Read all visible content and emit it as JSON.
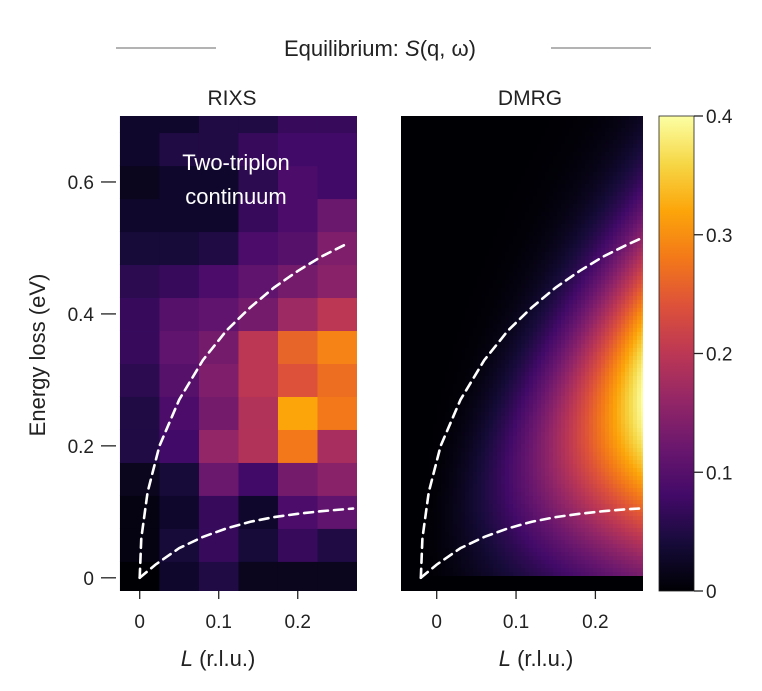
{
  "figure": {
    "title": "Equilibrium: S(q, ω)",
    "title_parts": {
      "text": "Equilibrium: ",
      "symbol": "S",
      "args": "(q, ω)"
    }
  },
  "chart_data": [
    {
      "type": "heatmap",
      "title": "RIXS",
      "xlabel": "L (r.l.u.)",
      "xlabel_parts": {
        "italic": "L",
        "unit": " (r.l.u.)"
      },
      "ylabel": "Energy loss (eV)",
      "x_ticks": [
        0,
        0.1,
        0.2
      ],
      "x_tick_labels": [
        "0",
        "0.1",
        "0.2"
      ],
      "y_ticks": [
        0,
        0.2,
        0.4,
        0.6
      ],
      "y_tick_labels": [
        "0",
        "0.2",
        "0.4",
        "0.6"
      ],
      "xlim": [
        -0.03,
        0.275
      ],
      "ylim": [
        -0.02,
        0.7
      ],
      "annotation": [
        "Two-triplon",
        "continuum"
      ],
      "x_bins": [
        -0.025,
        0.025,
        0.075,
        0.125,
        0.175,
        0.225,
        0.275
      ],
      "y_bins": [
        -0.025,
        0.025,
        0.075,
        0.125,
        0.175,
        0.225,
        0.275,
        0.325,
        0.375,
        0.425,
        0.475,
        0.525,
        0.575,
        0.625,
        0.675,
        0.7
      ],
      "z": [
        [
          0.0,
          0.03,
          0.05,
          0.02,
          0.02,
          0.02
        ],
        [
          0.01,
          0.04,
          0.07,
          0.04,
          0.07,
          0.05
        ],
        [
          0.01,
          0.03,
          0.07,
          0.03,
          0.09,
          0.11
        ],
        [
          0.02,
          0.04,
          0.12,
          0.08,
          0.13,
          0.15
        ],
        [
          0.05,
          0.08,
          0.16,
          0.19,
          0.28,
          0.18
        ],
        [
          0.05,
          0.09,
          0.13,
          0.19,
          0.32,
          0.28
        ],
        [
          0.06,
          0.1,
          0.14,
          0.2,
          0.24,
          0.27
        ],
        [
          0.07,
          0.11,
          0.13,
          0.2,
          0.26,
          0.29
        ],
        [
          0.07,
          0.1,
          0.11,
          0.13,
          0.17,
          0.2
        ],
        [
          0.06,
          0.07,
          0.09,
          0.11,
          0.13,
          0.15
        ],
        [
          0.04,
          0.04,
          0.05,
          0.09,
          0.1,
          0.14
        ],
        [
          0.03,
          0.03,
          0.03,
          0.07,
          0.09,
          0.12
        ],
        [
          0.02,
          0.03,
          0.03,
          0.06,
          0.09,
          0.08
        ],
        [
          0.03,
          0.05,
          0.05,
          0.07,
          0.08,
          0.08
        ],
        [
          0.03,
          0.03,
          0.05,
          0.05,
          0.07,
          0.07
        ]
      ],
      "zlim": [
        0,
        0.4
      ],
      "lines": [
        {
          "style": "dashed",
          "color": "#ffffff",
          "x": [
            0,
            0.002,
            0.01,
            0.025,
            0.05,
            0.08,
            0.11,
            0.14,
            0.17,
            0.2,
            0.23,
            0.26
          ],
          "y": [
            0,
            0.06,
            0.13,
            0.2,
            0.27,
            0.33,
            0.375,
            0.41,
            0.44,
            0.465,
            0.487,
            0.505
          ]
        },
        {
          "style": "dashed",
          "color": "#ffffff",
          "x": [
            0,
            0.02,
            0.05,
            0.08,
            0.11,
            0.14,
            0.17,
            0.2,
            0.23,
            0.26,
            0.27
          ],
          "y": [
            0,
            0.02,
            0.045,
            0.062,
            0.075,
            0.085,
            0.092,
            0.097,
            0.101,
            0.104,
            0.105
          ]
        }
      ]
    },
    {
      "type": "heatmap",
      "title": "DMRG",
      "xlabel": "L (r.l.u.)",
      "xlabel_parts": {
        "italic": "L",
        "unit": " (r.l.u.)"
      },
      "x_ticks": [
        0,
        0.1,
        0.2
      ],
      "x_tick_labels": [
        "0",
        "0.1",
        "0.2"
      ],
      "xlim": [
        -0.045,
        0.26
      ],
      "ylim": [
        -0.02,
        0.7
      ],
      "zlim": [
        0,
        0.4
      ],
      "lines": [
        {
          "style": "dashed",
          "color": "#ffffff",
          "x": [
            -0.02,
            -0.018,
            -0.01,
            0.005,
            0.03,
            0.06,
            0.09,
            0.12,
            0.15,
            0.18,
            0.21,
            0.24,
            0.255
          ],
          "y": [
            0,
            0.06,
            0.13,
            0.2,
            0.27,
            0.33,
            0.375,
            0.41,
            0.44,
            0.465,
            0.487,
            0.505,
            0.513
          ]
        },
        {
          "style": "dashed",
          "color": "#ffffff",
          "x": [
            -0.02,
            0.0,
            0.03,
            0.06,
            0.09,
            0.12,
            0.15,
            0.18,
            0.21,
            0.24,
            0.255
          ],
          "y": [
            0,
            0.02,
            0.045,
            0.062,
            0.075,
            0.085,
            0.092,
            0.097,
            0.101,
            0.104,
            0.105
          ]
        }
      ]
    }
  ],
  "colorbar": {
    "colormap": "inferno",
    "range": [
      0,
      0.4
    ],
    "ticks": [
      0,
      0.1,
      0.2,
      0.3,
      0.4
    ],
    "tick_labels": [
      "0",
      "0.1",
      "0.2",
      "0.3",
      "0.4"
    ]
  }
}
